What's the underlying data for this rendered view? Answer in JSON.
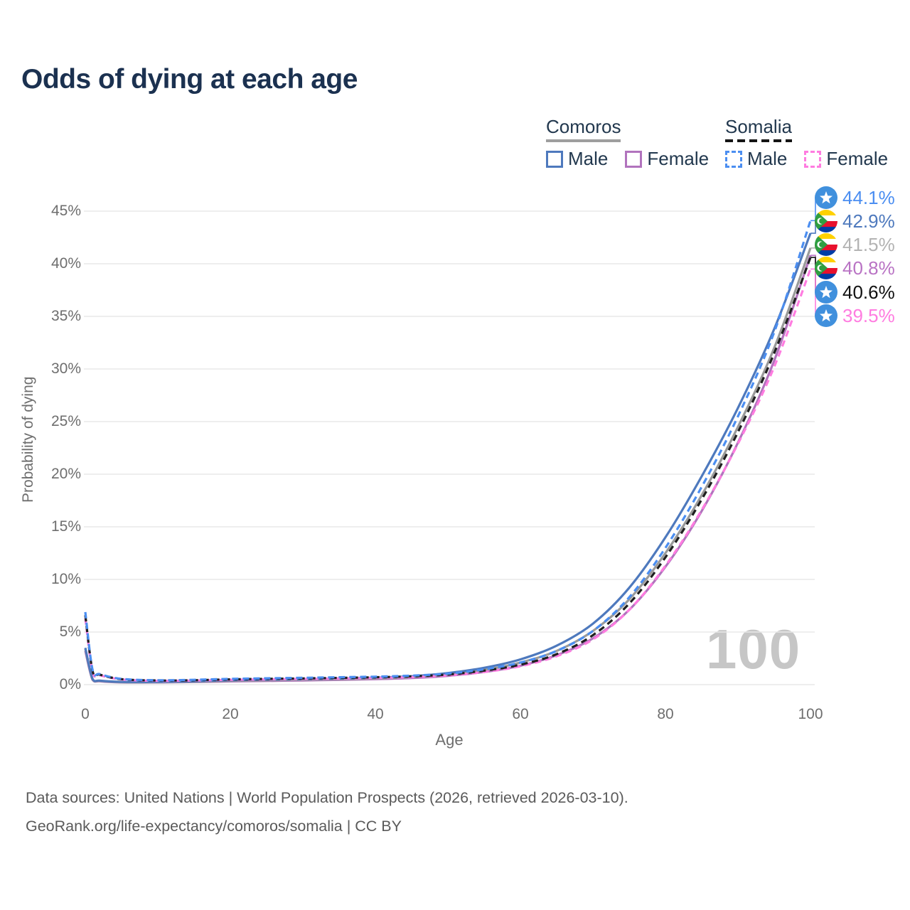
{
  "title": "Odds of dying at each age",
  "legend": {
    "groups": [
      {
        "name": "Comoros",
        "line_style": "solid",
        "underline_color": "#9e9e9e",
        "items": [
          {
            "label": "Male",
            "color": "#4e79bd"
          },
          {
            "label": "Female",
            "color": "#b173bd"
          }
        ]
      },
      {
        "name": "Somalia",
        "line_style": "dashed",
        "underline_color": "#141414",
        "items": [
          {
            "label": "Male",
            "color": "#4b8ef1"
          },
          {
            "label": "Female",
            "color": "#ff7ce0"
          }
        ]
      }
    ]
  },
  "axes": {
    "y_title": "Probability of dying",
    "x_title": "Age",
    "y_ticks": [
      "45%",
      "40%",
      "35%",
      "30%",
      "25%",
      "20%",
      "15%",
      "10%",
      "5%",
      "0%"
    ],
    "x_ticks": [
      "0",
      "20",
      "40",
      "60",
      "80",
      "100"
    ]
  },
  "watermark": "100",
  "end_labels": [
    {
      "value": "44.1%",
      "flag": "somalia",
      "color": "#4b8ef1",
      "series": "somalia-male"
    },
    {
      "value": "42.9%",
      "flag": "comoros",
      "color": "#4e79bd",
      "series": "comoros-male"
    },
    {
      "value": "41.5%",
      "flag": "comoros",
      "color": "#b3b3b3",
      "series": "comoros-both"
    },
    {
      "value": "40.8%",
      "flag": "comoros",
      "color": "#b973c4",
      "series": "comoros-female"
    },
    {
      "value": "40.6%",
      "flag": "somalia",
      "color": "#111111",
      "series": "somalia-both"
    },
    {
      "value": "39.5%",
      "flag": "somalia",
      "color": "#ff7ce0",
      "series": "somalia-female"
    }
  ],
  "footer": {
    "line1": "Data sources: United Nations | World Population Prospects (2026, retrieved 2026-03-10).",
    "line2": "GeoRank.org/life-expectancy/comoros/somalia | CC BY"
  },
  "chart_data": {
    "type": "line",
    "title": "Odds of dying at each age",
    "xlabel": "Age",
    "ylabel": "Probability of dying",
    "xlim": [
      0,
      100
    ],
    "ylim": [
      0,
      45
    ],
    "grid": "horizontal",
    "legend_position": "top-right",
    "x": [
      0,
      1,
      2,
      5,
      10,
      15,
      20,
      25,
      30,
      35,
      40,
      45,
      50,
      55,
      60,
      65,
      70,
      75,
      80,
      85,
      90,
      95,
      100
    ],
    "draw_order": [
      "comoros-female",
      "comoros-both",
      "comoros-male",
      "somalia-female",
      "somalia-both",
      "somalia-male"
    ],
    "series": [
      {
        "key": "somalia-male",
        "name": "Somalia Male",
        "country": "Somalia",
        "sex": "male",
        "dash": true,
        "color": "#4b8ef1",
        "end_value_pct": 44.1,
        "values": [
          6.9,
          1.4,
          1.0,
          0.55,
          0.42,
          0.46,
          0.55,
          0.6,
          0.65,
          0.7,
          0.76,
          0.86,
          1.05,
          1.45,
          2.1,
          3.2,
          5.1,
          8.3,
          13.0,
          18.8,
          25.5,
          33.5,
          44.1
        ]
      },
      {
        "key": "comoros-male",
        "name": "Comoros Male",
        "country": "Comoros",
        "sex": "male",
        "dash": false,
        "color": "#4e79bd",
        "end_value_pct": 42.9,
        "values": [
          3.5,
          0.55,
          0.38,
          0.26,
          0.26,
          0.32,
          0.42,
          0.47,
          0.52,
          0.58,
          0.66,
          0.8,
          1.1,
          1.6,
          2.4,
          3.7,
          5.8,
          9.2,
          14.0,
          19.8,
          26.3,
          33.8,
          42.9
        ]
      },
      {
        "key": "comoros-both",
        "name": "Comoros Both sexes",
        "country": "Comoros",
        "sex": "both",
        "dash": false,
        "color": "#9a9a9a",
        "end_value_pct": 41.5,
        "values": [
          3.4,
          0.5,
          0.35,
          0.23,
          0.23,
          0.28,
          0.36,
          0.41,
          0.46,
          0.52,
          0.59,
          0.72,
          0.97,
          1.4,
          2.1,
          3.2,
          5.1,
          8.1,
          12.5,
          18.0,
          24.5,
          32.0,
          41.5
        ]
      },
      {
        "key": "comoros-female",
        "name": "Comoros Female",
        "country": "Comoros",
        "sex": "female",
        "dash": false,
        "color": "#b173bd",
        "end_value_pct": 40.8,
        "values": [
          3.2,
          0.45,
          0.32,
          0.21,
          0.21,
          0.25,
          0.31,
          0.35,
          0.4,
          0.45,
          0.52,
          0.63,
          0.84,
          1.2,
          1.8,
          2.8,
          4.4,
          7.1,
          11.2,
          16.5,
          23.0,
          30.8,
          40.8
        ]
      },
      {
        "key": "somalia-both",
        "name": "Somalia Both sexes",
        "country": "Somalia",
        "sex": "both",
        "dash": true,
        "color": "#1f1f1f",
        "end_value_pct": 40.6,
        "values": [
          6.6,
          1.3,
          0.95,
          0.52,
          0.39,
          0.42,
          0.5,
          0.55,
          0.59,
          0.64,
          0.7,
          0.79,
          0.96,
          1.33,
          1.9,
          2.9,
          4.7,
          7.7,
          12.1,
          17.6,
          24.0,
          31.5,
          40.6
        ]
      },
      {
        "key": "somalia-female",
        "name": "Somalia Female",
        "country": "Somalia",
        "sex": "female",
        "dash": true,
        "color": "#ff7ce0",
        "end_value_pct": 39.5,
        "values": [
          6.3,
          1.25,
          0.9,
          0.49,
          0.36,
          0.39,
          0.46,
          0.5,
          0.54,
          0.58,
          0.64,
          0.72,
          0.88,
          1.2,
          1.75,
          2.7,
          4.3,
          7.1,
          11.3,
          16.6,
          22.9,
          30.2,
          39.5
        ]
      }
    ]
  }
}
